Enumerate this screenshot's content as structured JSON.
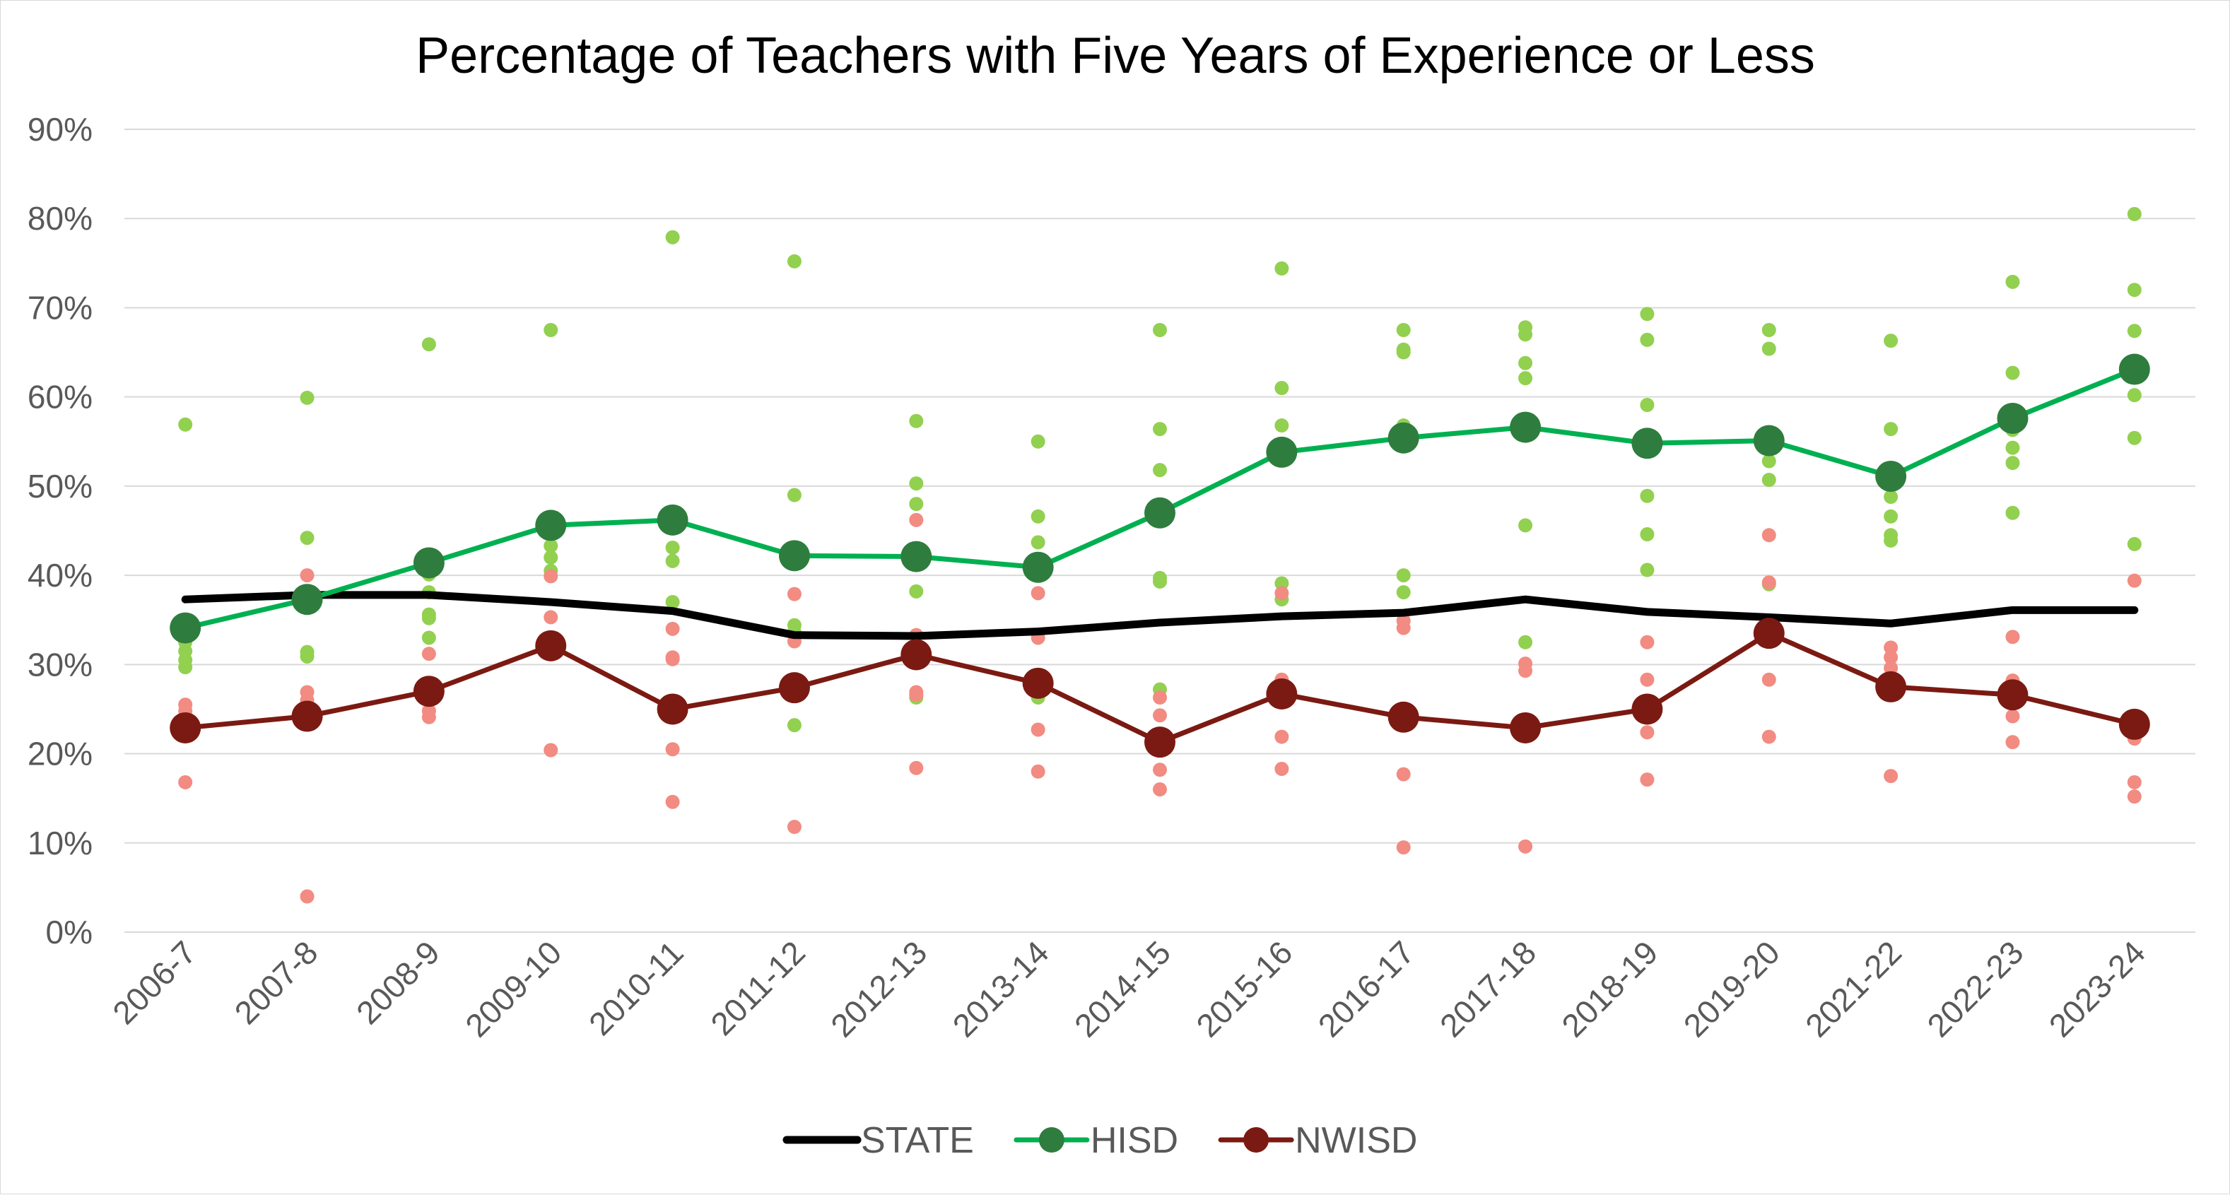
{
  "chart_data": {
    "type": "line",
    "title": "Percentage of Teachers with Five Years of Experience or Less",
    "xlabel": "",
    "ylabel": "",
    "ylim": [
      0,
      90
    ],
    "y_ticks": [
      "0%",
      "10%",
      "20%",
      "30%",
      "40%",
      "50%",
      "60%",
      "70%",
      "80%",
      "90%"
    ],
    "grid": true,
    "legend_position": "bottom",
    "categories": [
      "2006-7",
      "2007-8",
      "2008-9",
      "2009-10",
      "2010-11",
      "2011-12",
      "2012-13",
      "2013-14",
      "2014-15",
      "2015-16",
      "2016-17",
      "2017-18",
      "2018-19",
      "2019-20",
      "2021-22",
      "2022-23",
      "2023-24"
    ],
    "series": [
      {
        "name": "STATE",
        "color": "#000000",
        "marker": false,
        "values": [
          37.3,
          37.8,
          37.8,
          37.0,
          36.0,
          33.3,
          33.2,
          33.7,
          34.7,
          35.4,
          35.8,
          37.3,
          35.9,
          35.3,
          34.6,
          36.1,
          36.1
        ]
      },
      {
        "name": "HISD",
        "color": "#00b050",
        "marker_color": "#2e7d3e",
        "marker": true,
        "values": [
          34.1,
          37.3,
          41.4,
          45.6,
          46.2,
          42.2,
          42.1,
          40.9,
          47.0,
          53.8,
          55.4,
          56.6,
          54.8,
          55.1,
          51.1,
          57.6,
          63.1
        ]
      },
      {
        "name": "NWISD",
        "color": "#7b1a12",
        "marker_color": "#7b1a12",
        "marker": true,
        "values": [
          22.9,
          24.2,
          27.0,
          32.1,
          25.0,
          27.4,
          31.1,
          27.9,
          21.3,
          26.7,
          24.1,
          22.9,
          25.0,
          33.5,
          27.5,
          26.6,
          23.3
        ]
      }
    ],
    "scatter_series": [
      {
        "color": "#92d050",
        "points": [
          [
            0,
            56.9
          ],
          [
            0,
            32.5
          ],
          [
            0,
            31.5
          ],
          [
            0,
            30.5
          ],
          [
            0,
            29.7
          ],
          [
            0,
            23.8
          ],
          [
            1,
            59.9
          ],
          [
            1,
            44.2
          ],
          [
            1,
            31.4
          ],
          [
            1,
            30.9
          ],
          [
            2,
            65.9
          ],
          [
            2,
            40.1
          ],
          [
            2,
            38.1
          ],
          [
            2,
            35.6
          ],
          [
            2,
            35.2
          ],
          [
            2,
            33.0
          ],
          [
            3,
            67.5
          ],
          [
            3,
            44.5
          ],
          [
            3,
            43.3
          ],
          [
            3,
            42.0
          ],
          [
            3,
            40.5
          ],
          [
            4,
            77.9
          ],
          [
            4,
            46.6
          ],
          [
            4,
            43.1
          ],
          [
            4,
            41.6
          ],
          [
            4,
            37.0
          ],
          [
            5,
            75.2
          ],
          [
            5,
            49.0
          ],
          [
            5,
            34.4
          ],
          [
            5,
            33.6
          ],
          [
            5,
            23.2
          ],
          [
            6,
            57.3
          ],
          [
            6,
            50.3
          ],
          [
            6,
            48.0
          ],
          [
            6,
            38.2
          ],
          [
            6,
            31.6
          ],
          [
            6,
            26.3
          ],
          [
            7,
            55.0
          ],
          [
            7,
            46.6
          ],
          [
            7,
            43.7
          ],
          [
            7,
            40.8
          ],
          [
            7,
            26.3
          ],
          [
            8,
            67.5
          ],
          [
            8,
            56.4
          ],
          [
            8,
            51.8
          ],
          [
            8,
            39.7
          ],
          [
            8,
            39.3
          ],
          [
            8,
            27.2
          ],
          [
            9,
            74.4
          ],
          [
            9,
            61.0
          ],
          [
            9,
            56.8
          ],
          [
            9,
            53.9
          ],
          [
            9,
            39.1
          ],
          [
            9,
            37.3
          ],
          [
            10,
            67.5
          ],
          [
            10,
            65.3
          ],
          [
            10,
            65.0
          ],
          [
            10,
            56.8
          ],
          [
            10,
            40.0
          ],
          [
            10,
            38.1
          ],
          [
            11,
            67.8
          ],
          [
            11,
            67.0
          ],
          [
            11,
            63.8
          ],
          [
            11,
            62.1
          ],
          [
            11,
            45.6
          ],
          [
            11,
            32.5
          ],
          [
            12,
            69.3
          ],
          [
            12,
            66.4
          ],
          [
            12,
            59.1
          ],
          [
            12,
            48.9
          ],
          [
            12,
            44.6
          ],
          [
            12,
            40.6
          ],
          [
            13,
            67.5
          ],
          [
            13,
            65.4
          ],
          [
            13,
            55.1
          ],
          [
            13,
            52.8
          ],
          [
            13,
            50.7
          ],
          [
            13,
            39.0
          ],
          [
            14,
            66.3
          ],
          [
            14,
            56.4
          ],
          [
            14,
            48.8
          ],
          [
            14,
            46.6
          ],
          [
            14,
            44.5
          ],
          [
            14,
            43.9
          ],
          [
            15,
            72.9
          ],
          [
            15,
            62.7
          ],
          [
            15,
            56.3
          ],
          [
            15,
            54.3
          ],
          [
            15,
            52.6
          ],
          [
            15,
            47.0
          ],
          [
            16,
            80.5
          ],
          [
            16,
            72.0
          ],
          [
            16,
            67.4
          ],
          [
            16,
            60.2
          ],
          [
            16,
            55.4
          ],
          [
            16,
            43.5
          ]
        ]
      },
      {
        "color": "#f28b82",
        "points": [
          [
            0,
            25.5
          ],
          [
            0,
            24.8
          ],
          [
            0,
            23.5
          ],
          [
            0,
            16.8
          ],
          [
            1,
            40.0
          ],
          [
            1,
            26.9
          ],
          [
            1,
            26.0
          ],
          [
            1,
            25.4
          ],
          [
            1,
            4.0
          ],
          [
            2,
            31.2
          ],
          [
            2,
            25.9
          ],
          [
            2,
            24.8
          ],
          [
            2,
            24.1
          ],
          [
            3,
            39.9
          ],
          [
            3,
            35.3
          ],
          [
            3,
            32.1
          ],
          [
            3,
            20.4
          ],
          [
            4,
            34.0
          ],
          [
            4,
            30.8
          ],
          [
            4,
            30.6
          ],
          [
            4,
            20.5
          ],
          [
            4,
            14.6
          ],
          [
            5,
            37.9
          ],
          [
            5,
            32.6
          ],
          [
            5,
            27.4
          ],
          [
            5,
            11.8
          ],
          [
            6,
            46.2
          ],
          [
            6,
            33.3
          ],
          [
            6,
            26.9
          ],
          [
            6,
            26.6
          ],
          [
            6,
            18.4
          ],
          [
            7,
            38.0
          ],
          [
            7,
            33.0
          ],
          [
            7,
            22.7
          ],
          [
            7,
            18.0
          ],
          [
            8,
            26.3
          ],
          [
            8,
            24.3
          ],
          [
            8,
            18.2
          ],
          [
            8,
            16.0
          ],
          [
            9,
            38.0
          ],
          [
            9,
            28.3
          ],
          [
            9,
            21.9
          ],
          [
            9,
            18.3
          ],
          [
            10,
            34.9
          ],
          [
            10,
            34.1
          ],
          [
            10,
            17.7
          ],
          [
            10,
            9.5
          ],
          [
            11,
            30.1
          ],
          [
            11,
            29.3
          ],
          [
            11,
            22.3
          ],
          [
            11,
            9.6
          ],
          [
            12,
            32.5
          ],
          [
            12,
            28.3
          ],
          [
            12,
            22.4
          ],
          [
            12,
            17.1
          ],
          [
            13,
            44.5
          ],
          [
            13,
            39.2
          ],
          [
            13,
            28.3
          ],
          [
            13,
            21.9
          ],
          [
            14,
            31.9
          ],
          [
            14,
            30.8
          ],
          [
            14,
            29.6
          ],
          [
            14,
            17.5
          ],
          [
            15,
            33.1
          ],
          [
            15,
            28.2
          ],
          [
            15,
            24.2
          ],
          [
            15,
            21.3
          ],
          [
            16,
            39.4
          ],
          [
            16,
            21.7
          ],
          [
            16,
            16.8
          ],
          [
            16,
            15.2
          ]
        ]
      }
    ]
  }
}
